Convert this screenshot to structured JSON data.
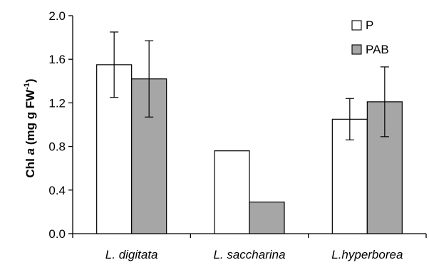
{
  "chart_data": {
    "type": "bar",
    "categories": [
      "L. digitata",
      "L. saccharina",
      "L.hyperborea"
    ],
    "series": [
      {
        "name": "P",
        "color": "#ffffff",
        "values": [
          1.55,
          0.76,
          1.05
        ],
        "errors": [
          0.3,
          null,
          0.19
        ]
      },
      {
        "name": "PAB",
        "color": "#a6a6a6",
        "values": [
          1.42,
          0.29,
          1.21
        ],
        "errors": [
          0.35,
          null,
          0.32
        ]
      }
    ],
    "ylabel": {
      "prefix": "Chl ",
      "italic": "a",
      "middle": " (mg g FW",
      "superscript": "-1",
      "suffix": ")"
    },
    "ylim": [
      0,
      2.0
    ],
    "yticks": [
      "0.0",
      "0.4",
      "0.8",
      "1.2",
      "1.6",
      "2.0"
    ],
    "grid": false,
    "legend": "top-right"
  }
}
